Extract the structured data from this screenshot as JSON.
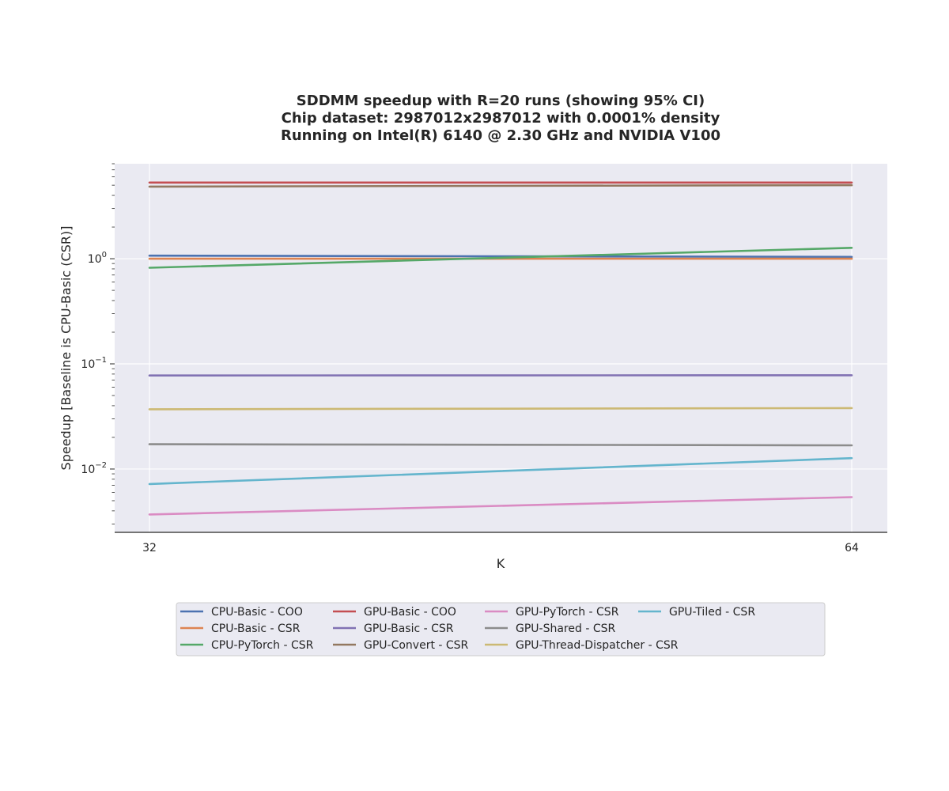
{
  "chart_data": {
    "type": "line",
    "title": [
      "SDDMM speedup with R=20 runs (showing 95% CI)",
      "Chip dataset: 2987012x2987012 with 0.0001% density",
      "Running on Intel(R) 6140 @ 2.30 GHz and NVIDIA V100"
    ],
    "xlabel": "K",
    "ylabel": "Speedup [Baseline is CPU-Basic (CSR)]",
    "x": [
      32,
      64
    ],
    "x_ticks": [
      "32",
      "64"
    ],
    "y_scale": "log",
    "ylim": [
      0.0025,
      8
    ],
    "y_ticks": [
      {
        "value": 0.01,
        "base": "10",
        "exp": "−2"
      },
      {
        "value": 0.1,
        "base": "10",
        "exp": "−1"
      },
      {
        "value": 1,
        "base": "10",
        "exp": "0"
      }
    ],
    "grid": true,
    "legend_position": "below plot, 4 columns",
    "series": [
      {
        "name": "CPU-Basic - COO",
        "color": "#4c72b0",
        "values": [
          1.07,
          1.04
        ]
      },
      {
        "name": "CPU-Basic - CSR",
        "color": "#dd8452",
        "values": [
          1.0,
          1.0
        ]
      },
      {
        "name": "CPU-PyTorch - CSR",
        "color": "#55a868",
        "values": [
          0.82,
          1.27
        ]
      },
      {
        "name": "GPU-Basic - COO",
        "color": "#c44e52",
        "values": [
          5.3,
          5.3
        ]
      },
      {
        "name": "GPU-Basic - CSR",
        "color": "#8172b3",
        "values": [
          0.0775,
          0.078
        ]
      },
      {
        "name": "GPU-Convert - CSR",
        "color": "#937860",
        "values": [
          4.85,
          5.0
        ]
      },
      {
        "name": "GPU-PyTorch - CSR",
        "color": "#da8bc3",
        "values": [
          0.0037,
          0.0054
        ]
      },
      {
        "name": "GPU-Shared - CSR",
        "color": "#8c8c8c",
        "values": [
          0.0172,
          0.0168
        ]
      },
      {
        "name": "GPU-Thread-Dispatcher - CSR",
        "color": "#ccb974",
        "values": [
          0.037,
          0.038
        ]
      },
      {
        "name": "GPU-Tiled - CSR",
        "color": "#64b5cd",
        "values": [
          0.0072,
          0.0127
        ]
      }
    ]
  },
  "colors": {
    "plot_background": "#eaeaf2",
    "grid": "#ffffff",
    "text": "#262626",
    "legend_background": "#eaeaf2",
    "legend_border": "#cccccc"
  }
}
